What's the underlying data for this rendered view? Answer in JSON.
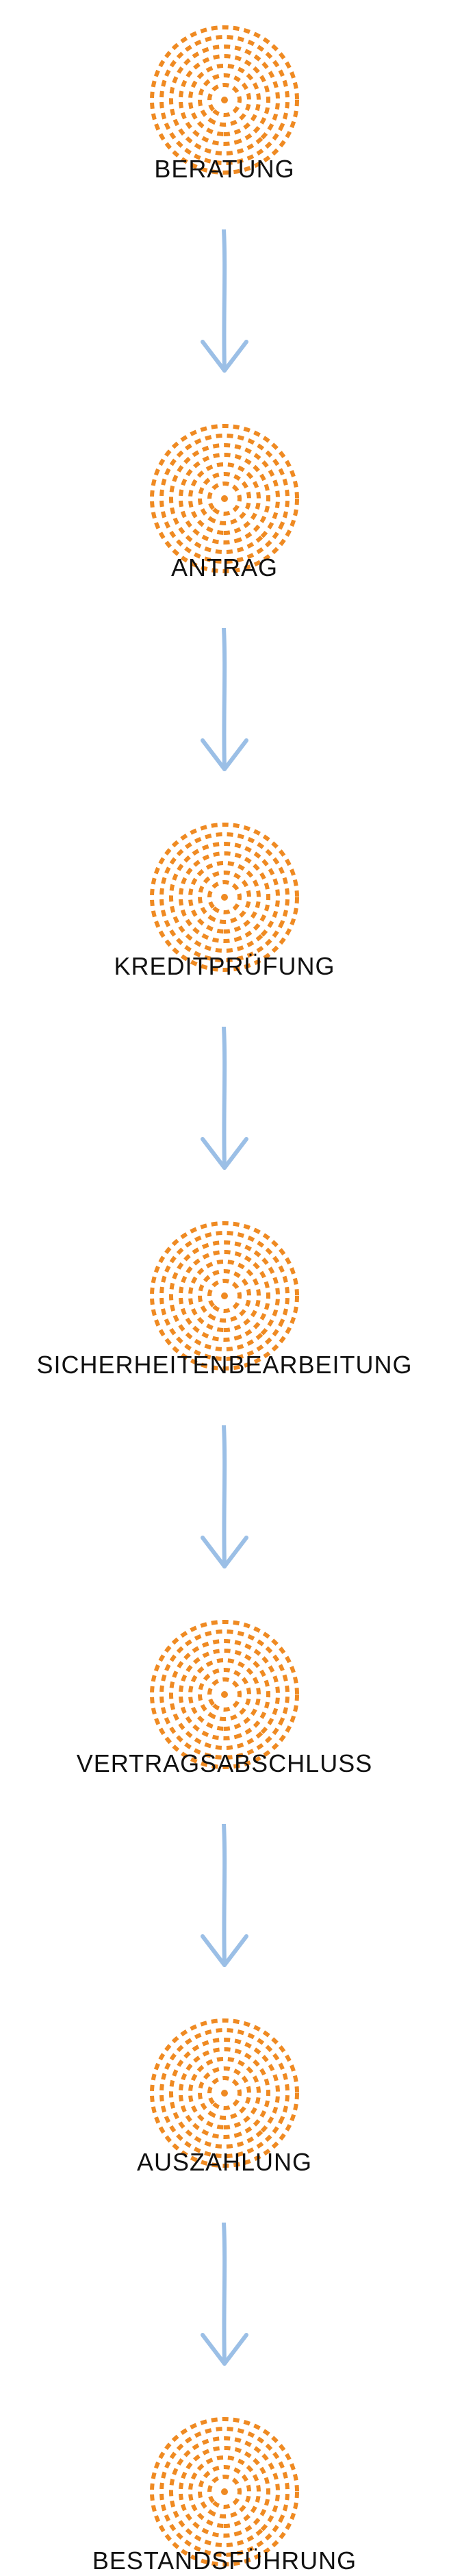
{
  "colors": {
    "circle": "#ef8a22",
    "arrow": "#9bbfe6",
    "text": "#111111"
  },
  "icons": {
    "step": "dashed-concentric-circle-icon",
    "connector": "down-arrow-icon"
  },
  "steps": [
    {
      "label": "BERATUNG"
    },
    {
      "label": "ANTRAG"
    },
    {
      "label": "KREDITPRÜFUNG"
    },
    {
      "label": "SICHERHEITENBEARBEITUNG"
    },
    {
      "label": "VERTRAGSABSCHLUSS"
    },
    {
      "label": "AUSZAHLUNG"
    },
    {
      "label": "BESTANDSFÜHRUNG"
    }
  ]
}
